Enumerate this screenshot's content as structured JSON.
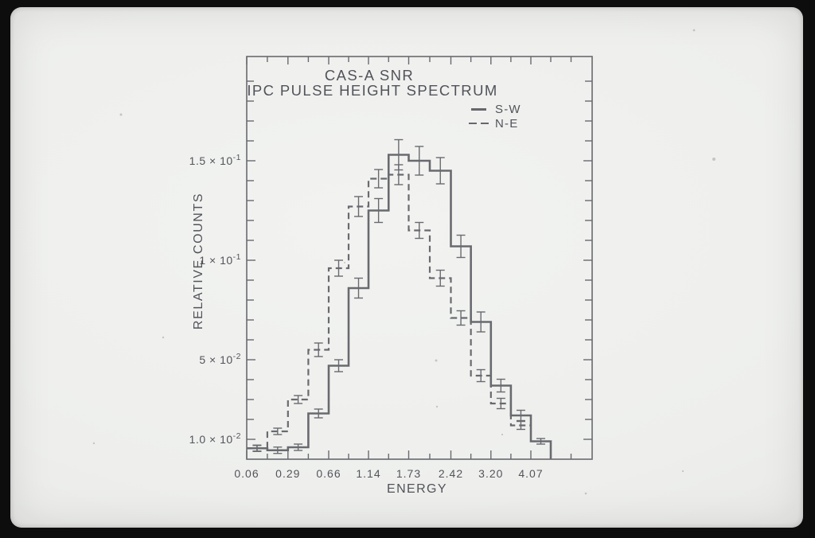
{
  "photo": {
    "border_color": "#0d0d0d",
    "paper_color": "#eeefed"
  },
  "chart_data": {
    "type": "step-histogram",
    "title": "CAS-A SNR",
    "subtitle": "IPC PULSE HEIGHT SPECTRUM",
    "xlabel": "ENERGY",
    "ylabel": "RELATIVE COUNTS",
    "x_tick_labels": [
      "0.06",
      "0.29",
      "0.66",
      "1.14",
      "1.73",
      "2.42",
      "3.20",
      "4.07"
    ],
    "y_tick_labels": [
      {
        "value": 0.15,
        "mantissa": "1.5 × 10",
        "exp": "-1"
      },
      {
        "value": 0.1,
        "mantissa": "1 × 10",
        "exp": "-1"
      },
      {
        "value": 0.05,
        "mantissa": "5 × 10",
        "exp": "-2"
      },
      {
        "value": 0.01,
        "mantissa": "1.0 × 10",
        "exp": "-2"
      }
    ],
    "y_minor_tick_step": 0.01,
    "y_tick_max": 0.19,
    "ylim": [
      0,
      0.2
    ],
    "grid": false,
    "legend_position": "top-right-inside",
    "legend": [
      {
        "label": "S-W",
        "style": "solid"
      },
      {
        "label": "N-E",
        "style": "dashed"
      }
    ],
    "note": "x-axis bins are half-tick wide; energies labeled at every other bin edge",
    "series": [
      {
        "name": "S-W",
        "style": "solid",
        "values": [
          0.0055,
          0.0045,
          0.006,
          0.023,
          0.047,
          0.086,
          0.125,
          0.153,
          0.15,
          0.145,
          0.107,
          0.069,
          0.037,
          0.022,
          0.009
        ],
        "errors": [
          0.0016,
          0.0016,
          0.0016,
          0.0022,
          0.003,
          0.005,
          0.006,
          0.0076,
          0.0072,
          0.0066,
          0.0056,
          0.005,
          0.0032,
          0.0026,
          0.0014
        ]
      },
      {
        "name": "N-E",
        "style": "dashed",
        "values": [
          0.0055,
          0.014,
          0.03,
          0.055,
          0.096,
          0.127,
          0.141,
          0.143,
          0.115,
          0.091,
          0.071,
          0.042,
          0.028,
          0.017
        ],
        "errors": [
          0.0014,
          0.0016,
          0.002,
          0.0034,
          0.004,
          0.005,
          0.0046,
          0.005,
          0.004,
          0.004,
          0.0036,
          0.003,
          0.0026,
          0.002
        ]
      }
    ],
    "colors": {
      "ink": "#696a6f",
      "text": "#53545a"
    }
  }
}
